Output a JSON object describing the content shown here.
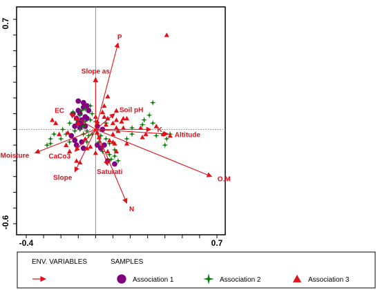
{
  "chart_data": {
    "type": "scatter",
    "subtype": "CCA ordination biplot",
    "x_range": [
      -0.4,
      0.7
    ],
    "y_range": [
      -0.6,
      0.7
    ],
    "x_tick_labels": [
      "-0.4",
      "0.7"
    ],
    "y_tick_labels": [
      "0.7",
      "-0.6"
    ],
    "grid": false,
    "reference_lines": {
      "x": 0,
      "y": 0
    },
    "colors": {
      "arrow": "#e3101a",
      "association_1": "#800080",
      "association_2": "#0a7a0a",
      "association_3": "#e3101a"
    },
    "env_variables": [
      {
        "name": "P",
        "x": 0.13,
        "y": 0.55
      },
      {
        "name": "Slope as",
        "x": 0.0,
        "y": 0.33
      },
      {
        "name": "EC",
        "x": -0.15,
        "y": 0.1
      },
      {
        "name": "Soil pH",
        "x": 0.11,
        "y": 0.1
      },
      {
        "name": "K",
        "x": 0.32,
        "y": 0.0
      },
      {
        "name": "Altitude",
        "x": 0.42,
        "y": -0.03
      },
      {
        "name": "Moisture",
        "x": -0.35,
        "y": -0.15
      },
      {
        "name": "CaCo3",
        "x": -0.12,
        "y": -0.14
      },
      {
        "name": "Saturati",
        "x": 0.07,
        "y": -0.23
      },
      {
        "name": "Slope",
        "x": -0.12,
        "y": -0.27
      },
      {
        "name": "O.M",
        "x": 0.67,
        "y": -0.3
      },
      {
        "name": "N",
        "x": 0.18,
        "y": -0.47
      }
    ],
    "series": [
      {
        "name": "Association 1",
        "marker": "circle",
        "points": [
          [
            -0.1,
            0.18
          ],
          [
            -0.07,
            0.17
          ],
          [
            -0.05,
            0.15
          ],
          [
            -0.07,
            0.14
          ],
          [
            -0.1,
            0.12
          ],
          [
            -0.04,
            0.12
          ],
          [
            -0.13,
            0.1
          ],
          [
            -0.09,
            0.1
          ],
          [
            -0.06,
            0.08
          ],
          [
            -0.11,
            0.07
          ],
          [
            -0.08,
            0.06
          ],
          [
            -0.05,
            0.07
          ],
          [
            -0.1,
            0.04
          ],
          [
            -0.08,
            0.03
          ],
          [
            -0.12,
            0.02
          ],
          [
            -0.09,
            0.01
          ],
          [
            -0.06,
            0.02
          ],
          [
            0.01,
            0.02
          ],
          [
            0.04,
            0.0
          ],
          [
            -0.14,
            -0.04
          ],
          [
            -0.12,
            -0.07
          ],
          [
            -0.08,
            -0.08
          ],
          [
            -0.11,
            -0.1
          ],
          [
            -0.07,
            -0.12
          ],
          [
            0.01,
            -0.1
          ],
          [
            0.03,
            -0.12
          ],
          [
            0.05,
            -0.1
          ],
          [
            0.07,
            -0.2
          ],
          [
            0.11,
            -0.22
          ]
        ]
      },
      {
        "name": "Association 2",
        "marker": "star",
        "points": [
          [
            -0.03,
            0.15
          ],
          [
            -0.06,
            0.13
          ],
          [
            -0.08,
            0.12
          ],
          [
            -0.13,
            0.11
          ],
          [
            -0.09,
            0.09
          ],
          [
            -0.02,
            0.1
          ],
          [
            -0.11,
            0.06
          ],
          [
            -0.06,
            0.05
          ],
          [
            -0.03,
            0.06
          ],
          [
            -0.15,
            0.04
          ],
          [
            -0.07,
            0.02
          ],
          [
            -0.19,
            0.0
          ],
          [
            -0.05,
            -0.01
          ],
          [
            -0.17,
            -0.03
          ],
          [
            -0.12,
            -0.01
          ],
          [
            -0.09,
            0.0
          ],
          [
            -0.07,
            -0.03
          ],
          [
            -0.04,
            -0.04
          ],
          [
            -0.02,
            -0.03
          ],
          [
            0.03,
            -0.04
          ],
          [
            -0.24,
            -0.03
          ],
          [
            -0.26,
            -0.06
          ],
          [
            -0.26,
            -0.09
          ],
          [
            -0.28,
            -0.1
          ],
          [
            -0.2,
            -0.06
          ],
          [
            -0.15,
            -0.08
          ],
          [
            -0.05,
            -0.08
          ],
          [
            0.02,
            -0.08
          ],
          [
            0.06,
            -0.06
          ],
          [
            0.08,
            -0.09
          ],
          [
            0.04,
            -0.14
          ],
          [
            0.08,
            -0.16
          ],
          [
            0.09,
            -0.19
          ],
          [
            0.11,
            -0.17
          ],
          [
            0.13,
            -0.2
          ],
          [
            0.11,
            -0.13
          ],
          [
            0.33,
            0.17
          ],
          [
            0.31,
            0.09
          ],
          [
            0.28,
            0.06
          ],
          [
            0.33,
            0.04
          ],
          [
            0.27,
            0.03
          ],
          [
            0.21,
            0.01
          ],
          [
            0.21,
            -0.03
          ],
          [
            0.39,
            -0.03
          ],
          [
            0.43,
            -0.03
          ],
          [
            0.35,
            -0.04
          ],
          [
            0.41,
            -0.06
          ],
          [
            0.4,
            -0.1
          ],
          [
            0.18,
            -0.06
          ],
          [
            0.06,
            0.04
          ],
          [
            0.0,
            0.05
          ]
        ]
      },
      {
        "name": "Association 3",
        "marker": "triangle",
        "points": [
          [
            0.41,
            0.6
          ],
          [
            0.07,
            0.21
          ],
          [
            0.05,
            0.15
          ],
          [
            0.12,
            0.12
          ],
          [
            0.04,
            0.11
          ],
          [
            0.16,
            0.07
          ],
          [
            0.18,
            0.07
          ],
          [
            -0.11,
            0.07
          ],
          [
            0.0,
            0.08
          ],
          [
            0.07,
            0.07
          ],
          [
            0.01,
            0.05
          ],
          [
            0.1,
            0.04
          ],
          [
            0.12,
            0.06
          ],
          [
            0.15,
            0.05
          ],
          [
            -0.1,
            0.04
          ],
          [
            -0.23,
            0.04
          ],
          [
            -0.25,
            0.06
          ],
          [
            -0.21,
            -0.03
          ],
          [
            -0.16,
            -0.02
          ],
          [
            0.01,
            -0.02
          ],
          [
            0.06,
            0.03
          ],
          [
            0.12,
            0.01
          ],
          [
            0.16,
            0.01
          ],
          [
            0.26,
            0.01
          ],
          [
            0.27,
            -0.05
          ],
          [
            0.29,
            -0.03
          ],
          [
            0.35,
            0.02
          ],
          [
            0.39,
            -0.03
          ],
          [
            0.43,
            -0.04
          ],
          [
            0.1,
            -0.03
          ],
          [
            0.13,
            -0.01
          ],
          [
            0.08,
            -0.07
          ],
          [
            0.11,
            -0.09
          ],
          [
            0.18,
            -0.09
          ],
          [
            0.07,
            -0.14
          ],
          [
            -0.06,
            -0.06
          ],
          [
            -0.03,
            -0.11
          ],
          [
            0.02,
            -0.05
          ],
          [
            -0.17,
            -0.1
          ],
          [
            -0.15,
            -0.14
          ],
          [
            -0.11,
            -0.2
          ],
          [
            -0.09,
            -0.21
          ],
          [
            0.12,
            -0.14
          ],
          [
            0.0,
            -0.15
          ],
          [
            -0.05,
            -0.12
          ],
          [
            0.1,
            -0.08
          ],
          [
            0.05,
            0.08
          ]
        ]
      }
    ]
  },
  "legend": {
    "env_header": "ENV. VARIABLES",
    "samples_header": "SAMPLES",
    "items": [
      {
        "label": "Association 1",
        "marker": "circle"
      },
      {
        "label": "Association 2",
        "marker": "star"
      },
      {
        "label": "Association 3",
        "marker": "triangle"
      }
    ]
  }
}
